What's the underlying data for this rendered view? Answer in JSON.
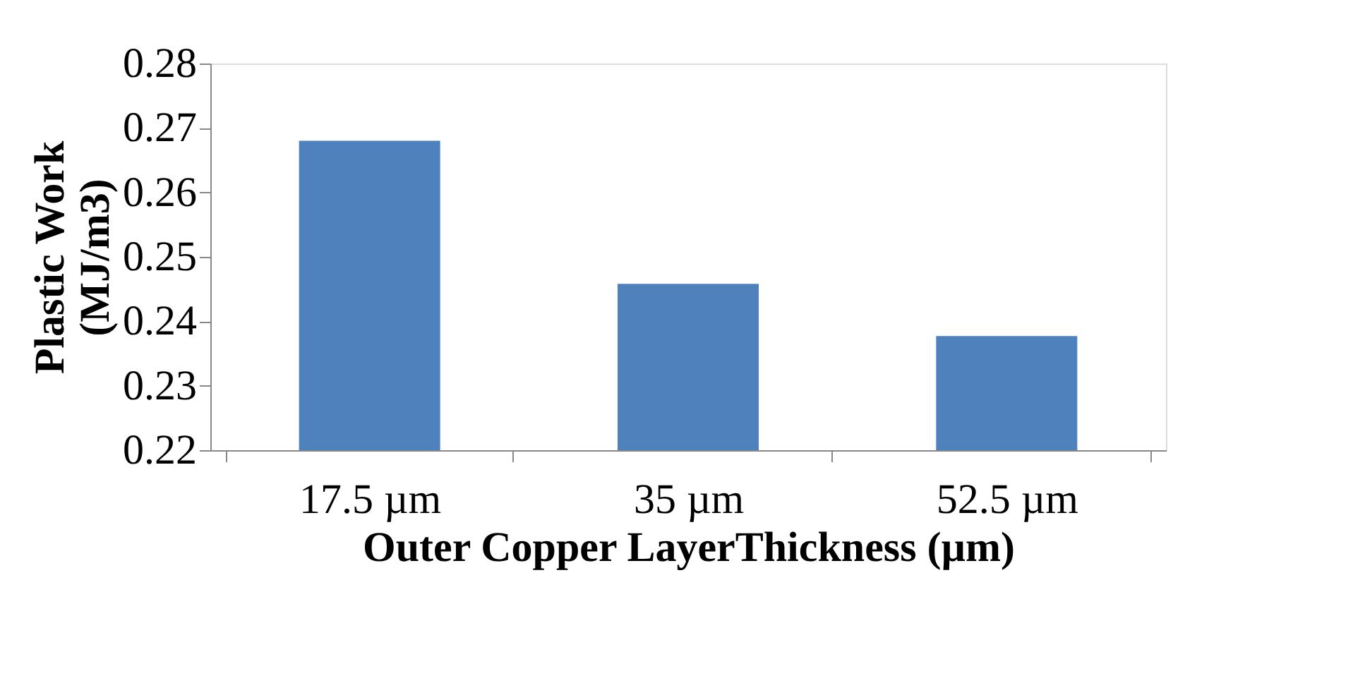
{
  "chart_data": {
    "type": "bar",
    "categories": [
      "17.5 µm",
      "35  µm",
      "52.5  µm"
    ],
    "values": [
      0.268,
      0.2458,
      0.2377
    ],
    "color": "#4f81bd",
    "ylabel": "Plastic Work\n(MJ/m3)",
    "xlabel": "Outer Copper LayerThickness (µm)",
    "ylim": [
      0.22,
      0.28
    ],
    "yticks": [
      0.22,
      0.23,
      0.24,
      0.25,
      0.26,
      0.27,
      0.28
    ],
    "grid": false
  }
}
